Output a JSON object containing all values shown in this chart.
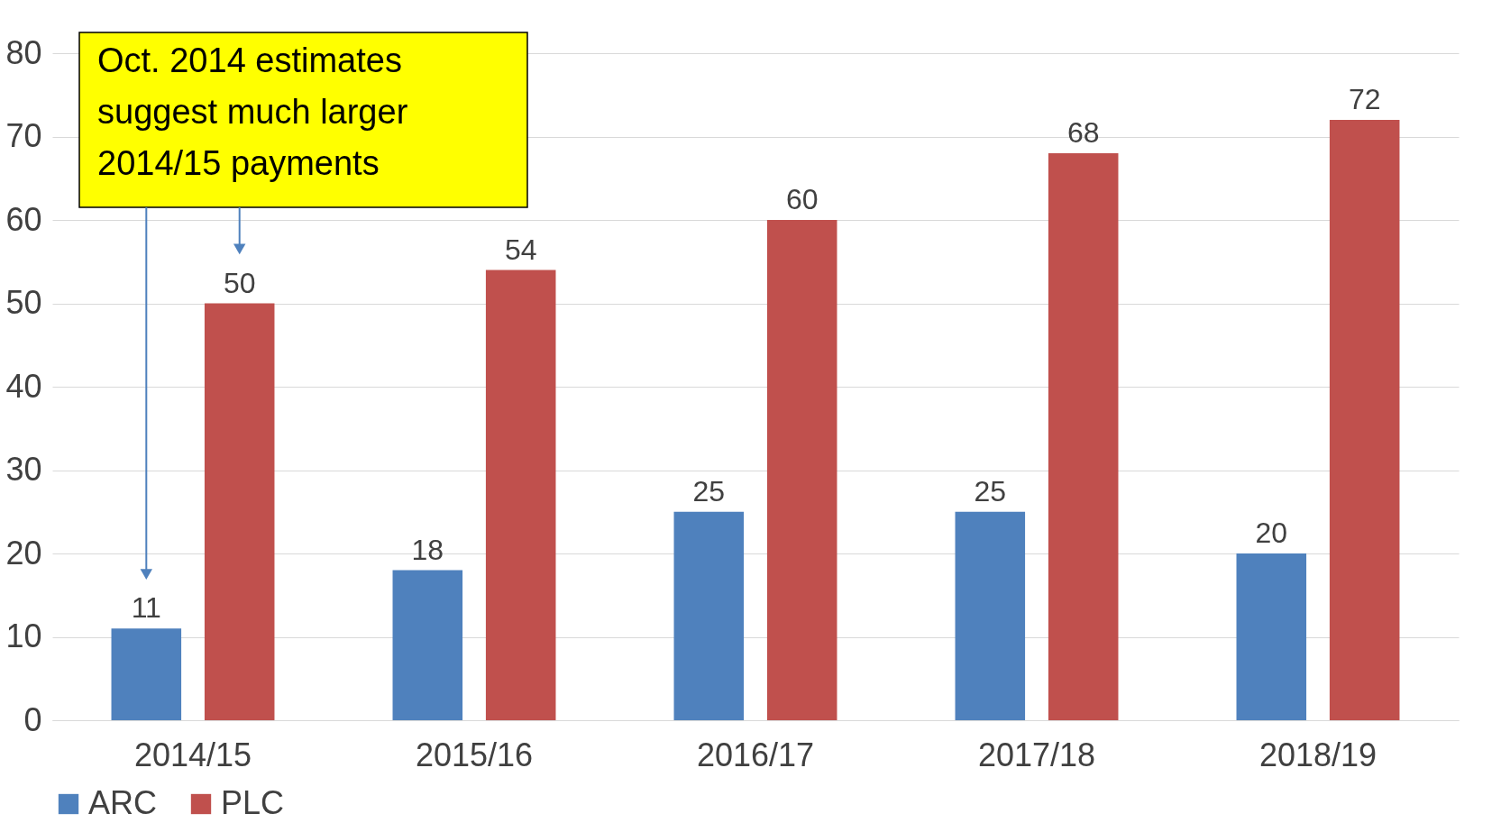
{
  "chart_data": {
    "type": "bar",
    "categories": [
      "2014/15",
      "2015/16",
      "2016/17",
      "2017/18",
      "2018/19"
    ],
    "series": [
      {
        "name": "ARC",
        "color": "#4f81bd",
        "values": [
          11,
          18,
          25,
          25,
          20
        ]
      },
      {
        "name": "PLC",
        "color": "#c0504d",
        "values": [
          50,
          54,
          60,
          68,
          72
        ]
      }
    ],
    "ylim": [
      0,
      80
    ],
    "yticks": [
      0,
      10,
      20,
      30,
      40,
      50,
      60,
      70,
      80
    ],
    "grid": "y",
    "legend": "bottom",
    "data_labels": true,
    "annotations": [
      "Oct. 2014 estimates\nsuggest much larger\n2014/15 payments"
    ]
  }
}
